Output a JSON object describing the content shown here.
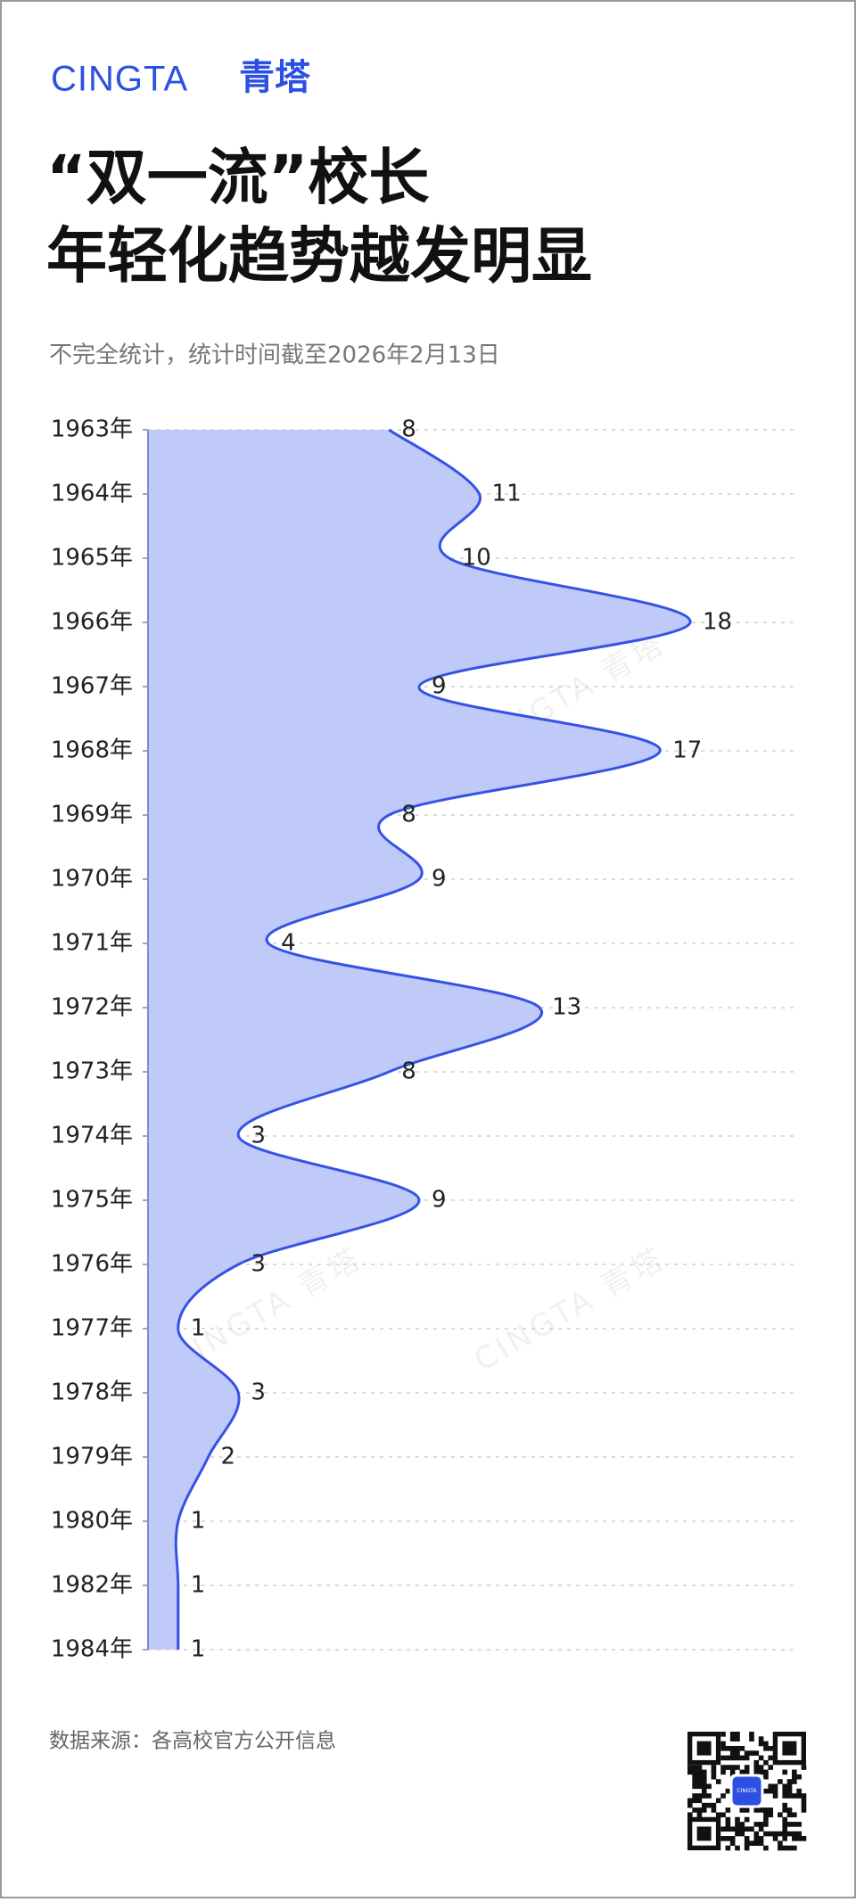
{
  "brand": {
    "latin": "CINGTA",
    "chinese": "青塔"
  },
  "chart_data": {
    "type": "area",
    "title": [
      "“双一流”校长",
      "年轻化趋势越发明显"
    ],
    "subtitle": "不完全统计，统计时间截至2026年2月13日",
    "categories": [
      "1963年",
      "1964年",
      "1965年",
      "1966年",
      "1967年",
      "1968年",
      "1969年",
      "1970年",
      "1971年",
      "1972年",
      "1973年",
      "1974年",
      "1975年",
      "1976年",
      "1977年",
      "1978年",
      "1979年",
      "1980年",
      "1982年",
      "1984年"
    ],
    "values": [
      8,
      11,
      10,
      18,
      9,
      17,
      8,
      9,
      4,
      13,
      8,
      3,
      9,
      3,
      1,
      3,
      2,
      1,
      1,
      1
    ],
    "xlim": [
      0,
      18
    ],
    "color": "#3552e6",
    "fill": "#bfcaf8",
    "grid": true
  },
  "source": "数据来源：各高校官方公开信息",
  "watermark": "CINGTA 青塔",
  "qr_logo": "CINGTA"
}
